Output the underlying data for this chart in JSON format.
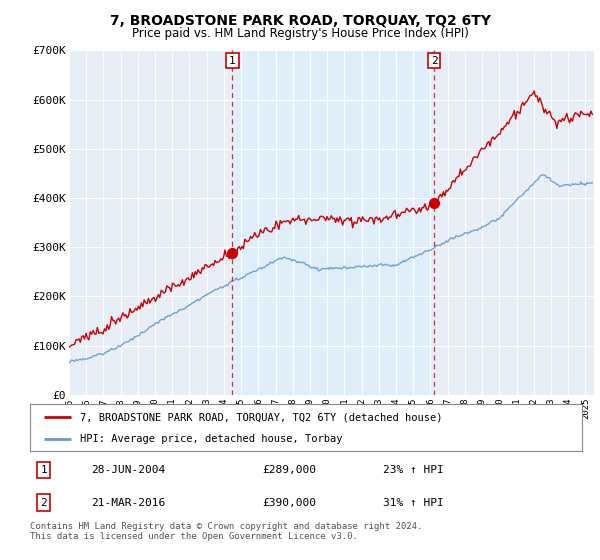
{
  "title": "7, BROADSTONE PARK ROAD, TORQUAY, TQ2 6TY",
  "subtitle": "Price paid vs. HM Land Registry's House Price Index (HPI)",
  "ylim": [
    0,
    700000
  ],
  "yticks": [
    0,
    100000,
    200000,
    300000,
    400000,
    500000,
    600000,
    700000
  ],
  "ytick_labels": [
    "£0",
    "£100K",
    "£200K",
    "£300K",
    "£400K",
    "£500K",
    "£600K",
    "£700K"
  ],
  "xlim_start": 1995.0,
  "xlim_end": 2025.5,
  "background_color": "#ffffff",
  "plot_bg_color": "#e8eef5",
  "shade_color": "#dce8f5",
  "grid_color": "#cccccc",
  "hpi_color": "#6699cc",
  "price_color": "#cc0000",
  "dashed_line_color": "#cc3333",
  "marker1_x": 2004.49,
  "marker1_y": 289000,
  "marker1_label": "1",
  "marker1_date": "28-JUN-2004",
  "marker1_price": "£289,000",
  "marker1_hpi": "23% ↑ HPI",
  "marker2_x": 2016.22,
  "marker2_y": 390000,
  "marker2_label": "2",
  "marker2_date": "21-MAR-2016",
  "marker2_price": "£390,000",
  "marker2_hpi": "31% ↑ HPI",
  "legend_line1": "7, BROADSTONE PARK ROAD, TORQUAY, TQ2 6TY (detached house)",
  "legend_line2": "HPI: Average price, detached house, Torbay",
  "footer": "Contains HM Land Registry data © Crown copyright and database right 2024.\nThis data is licensed under the Open Government Licence v3.0."
}
